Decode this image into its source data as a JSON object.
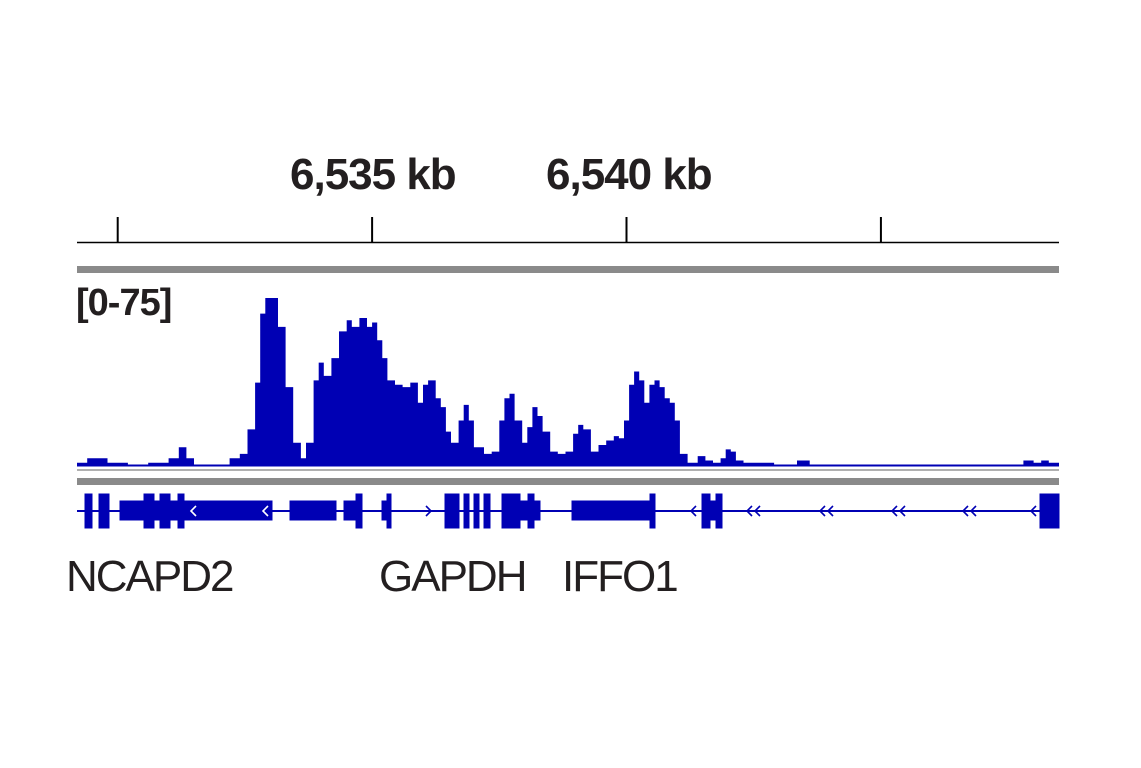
{
  "colors": {
    "track": "#0000b4",
    "text": "#231f20",
    "ruler": "#000000",
    "divider": "#888888"
  },
  "ruler": {
    "labels": [
      "6,535 kb",
      "6,540 kb"
    ]
  },
  "track": {
    "range_label": "[0-75]"
  },
  "genes": [
    {
      "name": "NCAPD2"
    },
    {
      "name": "GAPDH"
    },
    {
      "name": "IFFO1"
    }
  ],
  "chart_data": {
    "type": "area",
    "title": "",
    "xlabel": "",
    "ylabel": "",
    "x_unit": "kb",
    "xlim": [
      6529.2,
      6548.5
    ],
    "ylim": [
      0,
      75
    ],
    "x_ticks": [
      6530,
      6535,
      6540,
      6545
    ],
    "x_tick_labels": [
      "",
      "6,535 kb",
      "6,540 kb",
      ""
    ],
    "data_range_label": "[0-75]",
    "grid": false,
    "series": [
      {
        "points": [
          [
            6529.2,
            1
          ],
          [
            6529.4,
            3
          ],
          [
            6529.6,
            3
          ],
          [
            6529.8,
            1
          ],
          [
            6530.2,
            0
          ],
          [
            6530.6,
            1
          ],
          [
            6530.8,
            1
          ],
          [
            6531.0,
            3
          ],
          [
            6531.2,
            8
          ],
          [
            6531.35,
            3
          ],
          [
            6531.5,
            0
          ],
          [
            6532.0,
            0
          ],
          [
            6532.2,
            3
          ],
          [
            6532.4,
            5
          ],
          [
            6532.55,
            16
          ],
          [
            6532.7,
            37
          ],
          [
            6532.8,
            68
          ],
          [
            6532.9,
            75
          ],
          [
            6533.05,
            75
          ],
          [
            6533.15,
            62
          ],
          [
            6533.3,
            35
          ],
          [
            6533.45,
            10
          ],
          [
            6533.6,
            3
          ],
          [
            6533.7,
            10
          ],
          [
            6533.85,
            38
          ],
          [
            6533.95,
            46
          ],
          [
            6534.05,
            40
          ],
          [
            6534.2,
            48
          ],
          [
            6534.35,
            60
          ],
          [
            6534.5,
            65
          ],
          [
            6534.6,
            62
          ],
          [
            6534.75,
            66
          ],
          [
            6534.9,
            62
          ],
          [
            6535.0,
            64
          ],
          [
            6535.1,
            56
          ],
          [
            6535.2,
            48
          ],
          [
            6535.3,
            38
          ],
          [
            6535.45,
            36
          ],
          [
            6535.6,
            35
          ],
          [
            6535.75,
            37
          ],
          [
            6535.9,
            28
          ],
          [
            6536.0,
            36
          ],
          [
            6536.1,
            38
          ],
          [
            6536.25,
            30
          ],
          [
            6536.35,
            26
          ],
          [
            6536.45,
            15
          ],
          [
            6536.55,
            10
          ],
          [
            6536.7,
            20
          ],
          [
            6536.8,
            27
          ],
          [
            6536.9,
            20
          ],
          [
            6537.0,
            8
          ],
          [
            6537.2,
            5
          ],
          [
            6537.35,
            6
          ],
          [
            6537.5,
            20
          ],
          [
            6537.6,
            30
          ],
          [
            6537.7,
            32
          ],
          [
            6537.8,
            20
          ],
          [
            6537.95,
            10
          ],
          [
            6538.05,
            17
          ],
          [
            6538.15,
            26
          ],
          [
            6538.25,
            22
          ],
          [
            6538.35,
            15
          ],
          [
            6538.5,
            6
          ],
          [
            6538.65,
            5
          ],
          [
            6538.8,
            6
          ],
          [
            6538.95,
            14
          ],
          [
            6539.05,
            18
          ],
          [
            6539.15,
            16
          ],
          [
            6539.3,
            6
          ],
          [
            6539.45,
            9
          ],
          [
            6539.6,
            11
          ],
          [
            6539.75,
            13
          ],
          [
            6539.85,
            12
          ],
          [
            6539.95,
            20
          ],
          [
            6540.05,
            36
          ],
          [
            6540.15,
            42
          ],
          [
            6540.25,
            38
          ],
          [
            6540.35,
            28
          ],
          [
            6540.45,
            36
          ],
          [
            6540.55,
            38
          ],
          [
            6540.65,
            35
          ],
          [
            6540.75,
            30
          ],
          [
            6540.85,
            28
          ],
          [
            6540.95,
            20
          ],
          [
            6541.05,
            5
          ],
          [
            6541.2,
            1
          ],
          [
            6541.4,
            4
          ],
          [
            6541.55,
            2
          ],
          [
            6541.7,
            1
          ],
          [
            6541.85,
            3
          ],
          [
            6541.95,
            7
          ],
          [
            6542.05,
            6
          ],
          [
            6542.15,
            2
          ],
          [
            6542.3,
            1
          ],
          [
            6542.6,
            1
          ],
          [
            6542.9,
            0
          ],
          [
            6543.35,
            2
          ],
          [
            6543.6,
            0
          ],
          [
            6545.0,
            0
          ],
          [
            6547.0,
            0
          ],
          [
            6547.7,
            0
          ],
          [
            6547.8,
            2
          ],
          [
            6548.0,
            1
          ],
          [
            6548.15,
            2
          ],
          [
            6548.3,
            1
          ],
          [
            6548.5,
            1
          ]
        ]
      }
    ]
  }
}
